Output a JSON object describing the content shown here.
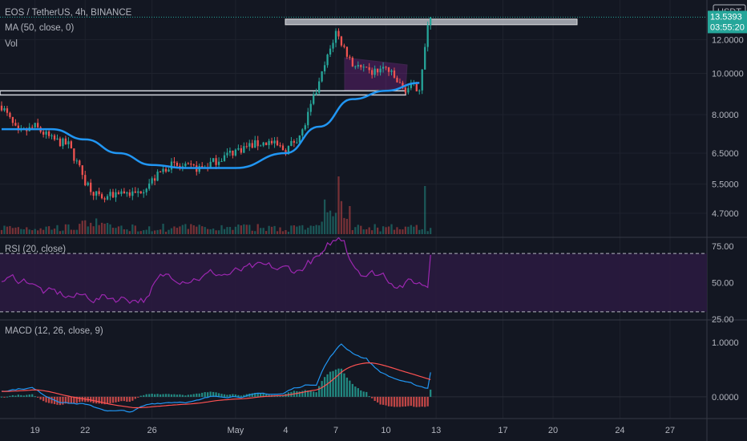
{
  "legend": {
    "symbol": "EOS / TetherUS, 4h, BINANCE",
    "ma": "MA (50, close, 0)",
    "vol": "Vol",
    "rsi": "RSI (20, close)",
    "macd": "MACD (12, 26, close, 9)"
  },
  "price_badge": {
    "currency": "USDT",
    "price": "13.5393",
    "countdown": "03:55:20"
  },
  "colors": {
    "bg": "#131722",
    "up": "#26a69a",
    "down": "#ef5350",
    "ma": "#2196f3",
    "rsi": "#9c27b0",
    "macd": "#2196f3",
    "signal": "#ff5252",
    "badge": "#26a69a"
  },
  "chart_data": [
    {
      "type": "candlestick",
      "x_ticks": [
        "19",
        "22",
        "26",
        "May",
        "4",
        "7",
        "10",
        "13",
        "17",
        "20",
        "24",
        "27"
      ],
      "y_ticks": [
        "12.0000",
        "10.0000",
        "8.0000",
        "6.5000",
        "5.5000",
        "4.7000"
      ],
      "y_scale": "log",
      "close_path": [
        [
          "Apr 17",
          8.4
        ],
        [
          "Apr 18",
          7.2
        ],
        [
          "Apr 19",
          7.5
        ],
        [
          "Apr 20",
          7.0
        ],
        [
          "Apr 21",
          6.8
        ],
        [
          "Apr 22",
          5.6
        ],
        [
          "Apr 23",
          5.0
        ],
        [
          "Apr 24",
          5.3
        ],
        [
          "Apr 25",
          5.2
        ],
        [
          "Apr 26",
          5.6
        ],
        [
          "Apr 27",
          6.1
        ],
        [
          "Apr 28",
          6.0
        ],
        [
          "Apr 29",
          6.0
        ],
        [
          "Apr 30",
          6.3
        ],
        [
          "May 1",
          6.6
        ],
        [
          "May 2",
          6.8
        ],
        [
          "May 3",
          6.9
        ],
        [
          "May 4",
          6.6
        ],
        [
          "May 5",
          7.3
        ],
        [
          "May 6",
          9.5
        ],
        [
          "May 7",
          12.5
        ],
        [
          "May 8",
          10.5
        ],
        [
          "May 9",
          10.0
        ],
        [
          "May 10",
          10.3
        ],
        [
          "May 11",
          9.2
        ],
        [
          "May 12",
          9.3
        ],
        [
          "May 12 late",
          13.5393
        ]
      ],
      "ma_path": [
        [
          "Apr 17",
          7.4
        ],
        [
          "Apr 20",
          7.4
        ],
        [
          "Apr 22",
          7.0
        ],
        [
          "Apr 24",
          6.5
        ],
        [
          "Apr 26",
          6.1
        ],
        [
          "Apr 28",
          6.0
        ],
        [
          "May 1",
          6.0
        ],
        [
          "May 4",
          6.5
        ],
        [
          "May 6",
          7.5
        ],
        [
          "May 8",
          8.7
        ],
        [
          "May 10",
          9.1
        ],
        [
          "May 12",
          9.5
        ]
      ],
      "zones": [
        {
          "name": "resistance",
          "y": [
            13.0,
            13.4
          ]
        },
        {
          "name": "support",
          "y": [
            8.9,
            9.1
          ]
        }
      ]
    },
    {
      "type": "line",
      "name": "RSI",
      "y_ticks": [
        "75.00",
        "50.00",
        "25.00"
      ],
      "levels": [
        70,
        30
      ],
      "ylim": [
        25,
        80
      ]
    },
    {
      "type": "line",
      "name": "MACD",
      "y_ticks": [
        "1.0000",
        "0.0000"
      ],
      "ylim": [
        -0.4,
        1.4
      ]
    }
  ]
}
